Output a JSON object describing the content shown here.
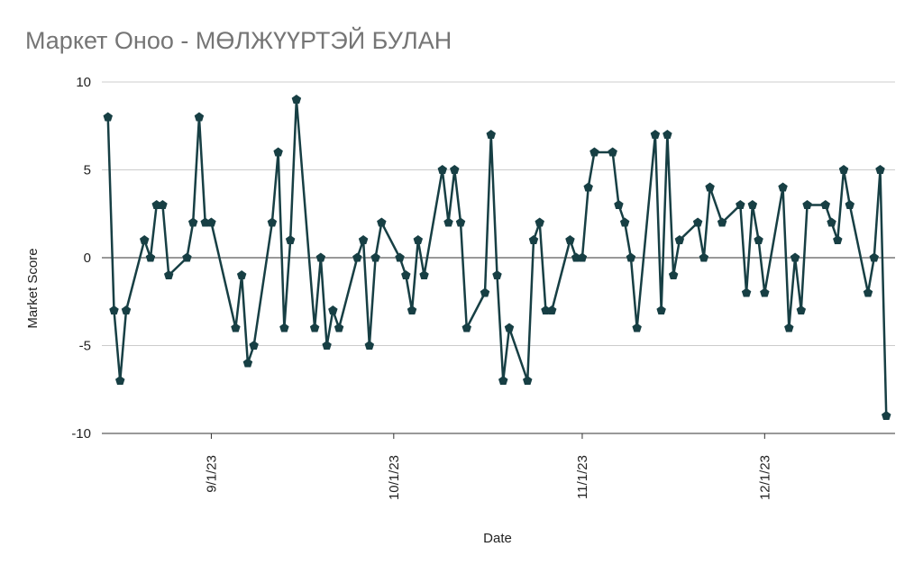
{
  "chart_data": {
    "type": "line",
    "title": "Маркет Оноо - МӨЛЖҮҮРТЭЙ БУЛАН",
    "x_label": "Date",
    "y_label": "Market Score",
    "x": [
      "2023-08-15",
      "2023-08-16",
      "2023-08-17",
      "2023-08-18",
      "2023-08-21",
      "2023-08-22",
      "2023-08-23",
      "2023-08-24",
      "2023-08-25",
      "2023-08-28",
      "2023-08-29",
      "2023-08-30",
      "2023-08-31",
      "2023-09-01",
      "2023-09-05",
      "2023-09-06",
      "2023-09-07",
      "2023-09-08",
      "2023-09-11",
      "2023-09-12",
      "2023-09-13",
      "2023-09-14",
      "2023-09-15",
      "2023-09-18",
      "2023-09-19",
      "2023-09-20",
      "2023-09-21",
      "2023-09-22",
      "2023-09-25",
      "2023-09-26",
      "2023-09-27",
      "2023-09-28",
      "2023-09-29",
      "2023-10-02",
      "2023-10-03",
      "2023-10-04",
      "2023-10-05",
      "2023-10-06",
      "2023-10-09",
      "2023-10-10",
      "2023-10-11",
      "2023-10-12",
      "2023-10-13",
      "2023-10-16",
      "2023-10-17",
      "2023-10-18",
      "2023-10-19",
      "2023-10-20",
      "2023-10-23",
      "2023-10-24",
      "2023-10-25",
      "2023-10-26",
      "2023-10-27",
      "2023-10-30",
      "2023-10-31",
      "2023-11-01",
      "2023-11-02",
      "2023-11-03",
      "2023-11-06",
      "2023-11-07",
      "2023-11-08",
      "2023-11-09",
      "2023-11-10",
      "2023-11-13",
      "2023-11-14",
      "2023-11-15",
      "2023-11-16",
      "2023-11-17",
      "2023-11-20",
      "2023-11-21",
      "2023-11-22",
      "2023-11-24",
      "2023-11-27",
      "2023-11-28",
      "2023-11-29",
      "2023-11-30",
      "2023-12-01",
      "2023-12-04",
      "2023-12-05",
      "2023-12-06",
      "2023-12-07",
      "2023-12-08",
      "2023-12-11",
      "2023-12-12",
      "2023-12-13",
      "2023-12-14",
      "2023-12-15",
      "2023-12-18",
      "2023-12-19",
      "2023-12-20",
      "2023-12-21"
    ],
    "series": [
      {
        "name": "Market Score",
        "color": "#173f44",
        "values": [
          8,
          -3,
          -7,
          -3,
          1,
          0,
          3,
          3,
          -1,
          0,
          2,
          8,
          2,
          2,
          -4,
          -1,
          -6,
          -5,
          2,
          6,
          -4,
          1,
          9,
          -4,
          0,
          -5,
          -3,
          -4,
          0,
          1,
          -5,
          0,
          2,
          0,
          -1,
          -3,
          1,
          -1,
          5,
          2,
          5,
          2,
          -4,
          -2,
          7,
          -1,
          -7,
          -4,
          -7,
          1,
          2,
          -3,
          -3,
          1,
          0,
          0,
          4,
          6,
          6,
          3,
          2,
          0,
          -4,
          7,
          -3,
          7,
          -1,
          1,
          2,
          0,
          4,
          2,
          3,
          -2,
          3,
          1,
          -2,
          4,
          -4,
          0,
          -3,
          3,
          3,
          2,
          1,
          5,
          3,
          -2,
          0,
          5,
          -9
        ]
      }
    ],
    "xlim": [
      "2023-08-14",
      "2023-12-22"
    ],
    "xticks": [
      {
        "value": "2023-09-01",
        "label": "9/1/23"
      },
      {
        "value": "2023-10-01",
        "label": "10/1/23"
      },
      {
        "value": "2023-11-01",
        "label": "11/1/23"
      },
      {
        "value": "2023-12-01",
        "label": "12/1/23"
      }
    ],
    "ylim": [
      -10,
      10
    ],
    "yticks": [
      -10,
      -5,
      0,
      5,
      10
    ],
    "grid": true
  }
}
